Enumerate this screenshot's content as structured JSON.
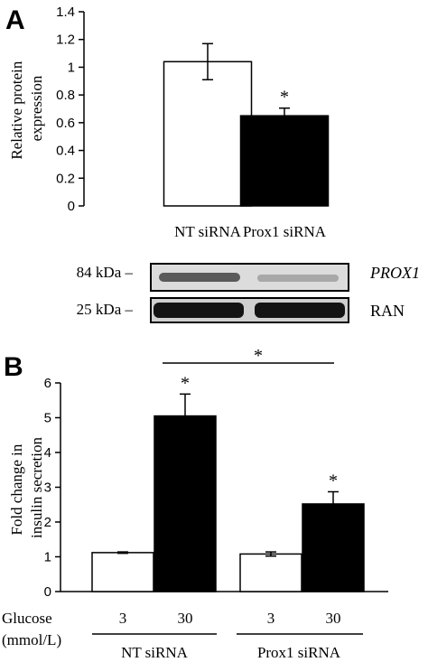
{
  "chart_data": [
    {
      "type": "bar",
      "panel_label": "A",
      "ylabel": "Relative protein expression",
      "ylabel_lines": [
        "Relative protein",
        "expression"
      ],
      "yticks": [
        "0",
        "0.2",
        "0.4",
        "0.6",
        "0.8",
        "1",
        "1.2",
        "1.4"
      ],
      "ylim": [
        0,
        1.4
      ],
      "categories": [
        "NT siRNA",
        "Prox1 siRNA"
      ],
      "values": [
        1.04,
        0.65
      ],
      "errors": [
        0.13,
        0.055
      ],
      "fills": [
        "#ffffff",
        "#000000"
      ],
      "significance": [
        "",
        "*"
      ],
      "blot": {
        "markers": [
          "84 kDa –",
          "25 kDa –"
        ],
        "bands": [
          "PROX1",
          "RAN"
        ]
      }
    },
    {
      "type": "bar",
      "panel_label": "B",
      "ylabel": "Fold change in insulin secretion",
      "ylabel_lines": [
        "Fold change in",
        "insulin secretion"
      ],
      "yticks": [
        "0",
        "1",
        "2",
        "3",
        "4",
        "5",
        "6"
      ],
      "ylim": [
        0,
        6
      ],
      "glucose_label": "Glucose",
      "unit_label": "(mmol/L)",
      "groups": [
        "NT siRNA",
        "Prox1 siRNA"
      ],
      "categories": [
        "3",
        "30",
        "3",
        "30"
      ],
      "values": [
        1.12,
        5.05,
        1.08,
        2.52
      ],
      "errors": [
        0.02,
        0.63,
        0.06,
        0.35
      ],
      "fills": [
        "#ffffff",
        "#000000",
        "#ffffff",
        "#000000"
      ],
      "significance": [
        "",
        "*",
        "",
        "*"
      ],
      "bracket_label": "*"
    }
  ]
}
